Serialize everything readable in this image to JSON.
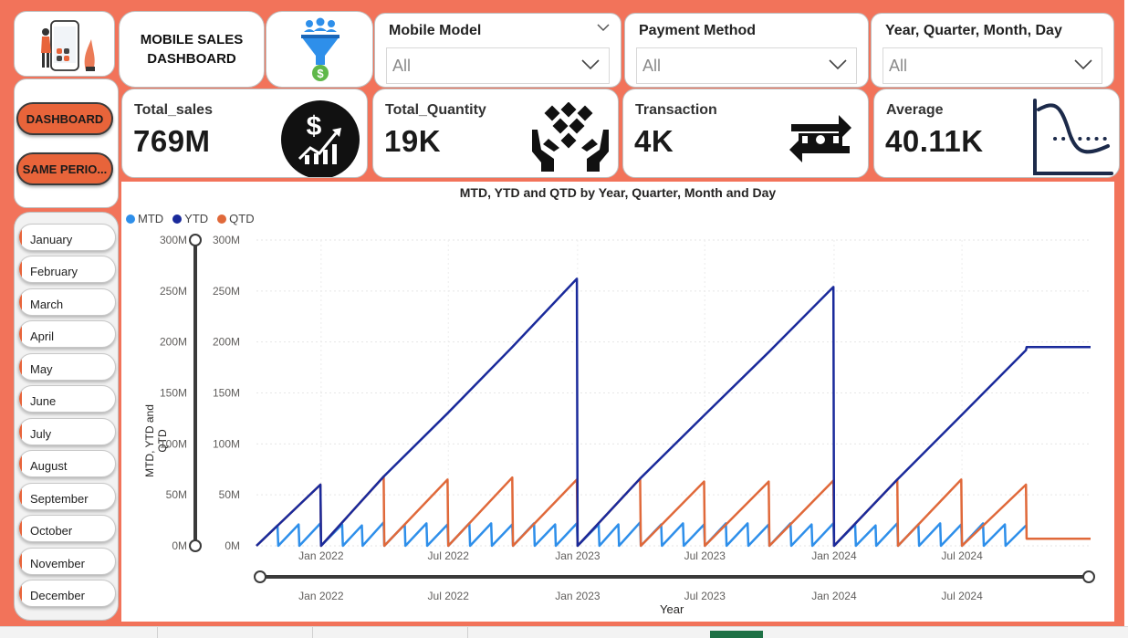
{
  "header": {
    "title": "MOBILE SALES\nDASHBOARD"
  },
  "slicers": [
    {
      "label": "Mobile Model",
      "value": "All"
    },
    {
      "label": "Payment Method",
      "value": "All"
    },
    {
      "label": "Year, Quarter, Month, Day",
      "value": "All"
    }
  ],
  "nav": {
    "dashboard_label": "DASHBOARD",
    "same_period_label": "SAME PERIO..."
  },
  "months": [
    "January",
    "February",
    "March",
    "April",
    "May",
    "June",
    "July",
    "August",
    "September",
    "October",
    "November",
    "December"
  ],
  "kpis": [
    {
      "label": "Total_sales",
      "value": "769M",
      "icon": "dollar-growth-icon"
    },
    {
      "label": "Total_Quantity",
      "value": "19K",
      "icon": "hands-boxes-icon"
    },
    {
      "label": "Transaction",
      "value": "4K",
      "icon": "money-exchange-icon"
    },
    {
      "label": "Average",
      "value": "40.11K",
      "icon": "distribution-curve-icon"
    }
  ],
  "chart": {
    "title": "MTD, YTD and QTD by Year, Quarter, Month and Day",
    "ylabel": "MTD, YTD and QTD",
    "xlabel": "Year",
    "ytick_labels": [
      "300M",
      "250M",
      "200M",
      "150M",
      "100M",
      "50M",
      "0M"
    ],
    "xtick_labels": [
      "Jan 2022",
      "Jul 2022",
      "Jan 2023",
      "Jul 2023",
      "Jan 2024",
      "Jul 2024"
    ]
  },
  "colors": {
    "background": "#F2735A",
    "accent": "#E8643A",
    "mtd": "#2E8FEA",
    "ytd": "#1A2A9B",
    "qtd": "#E0693A"
  },
  "chart_data": {
    "type": "line",
    "title": "MTD, YTD and QTD by Year, Quarter, Month and Day",
    "xlabel": "Year",
    "ylabel": "MTD, YTD and QTD",
    "ylim": [
      0,
      300000000
    ],
    "xlim": [
      "2021-10-01",
      "2024-12-31"
    ],
    "grid": true,
    "legend": "top-left",
    "series": [
      {
        "name": "MTD",
        "color": "#2E8FEA",
        "x": [
          "2021-10-01",
          "2021-10-31",
          "2021-11-01",
          "2021-11-30",
          "2021-12-01",
          "2021-12-31",
          "2022-01-01",
          "2022-01-31",
          "2022-02-01",
          "2022-02-28",
          "2022-03-01",
          "2022-03-31",
          "2022-04-01",
          "2022-04-30",
          "2022-05-01",
          "2022-05-31",
          "2022-06-01",
          "2022-06-30",
          "2022-07-01",
          "2022-07-31",
          "2022-08-01",
          "2022-08-31",
          "2022-09-01",
          "2022-09-30",
          "2022-10-01",
          "2022-10-31",
          "2022-11-01",
          "2022-11-30",
          "2022-12-01",
          "2022-12-31",
          "2023-01-01",
          "2023-01-31",
          "2023-02-01",
          "2023-02-28",
          "2023-03-01",
          "2023-03-31",
          "2023-04-01",
          "2023-04-30",
          "2023-05-01",
          "2023-05-31",
          "2023-06-01",
          "2023-06-30",
          "2023-07-01",
          "2023-07-31",
          "2023-08-01",
          "2023-08-31",
          "2023-09-01",
          "2023-09-30",
          "2023-10-01",
          "2023-10-31",
          "2023-11-01",
          "2023-11-30",
          "2023-12-01",
          "2023-12-31",
          "2024-01-01",
          "2024-01-31",
          "2024-02-01",
          "2024-02-29",
          "2024-03-01",
          "2024-03-31",
          "2024-04-01",
          "2024-04-30",
          "2024-05-01",
          "2024-05-31",
          "2024-06-01",
          "2024-06-30",
          "2024-07-01",
          "2024-07-31",
          "2024-08-01",
          "2024-08-31",
          "2024-09-01",
          "2024-09-30"
        ],
        "y": [
          0,
          20000000,
          0,
          21000000,
          0,
          22000000,
          0,
          21000000,
          0,
          20000000,
          0,
          23000000,
          0,
          21000000,
          0,
          22000000,
          0,
          21000000,
          0,
          22000000,
          0,
          22000000,
          0,
          21000000,
          0,
          22000000,
          0,
          21000000,
          0,
          22000000,
          0,
          21000000,
          0,
          21000000,
          0,
          23000000,
          0,
          21000000,
          0,
          22000000,
          0,
          21000000,
          0,
          22000000,
          0,
          22000000,
          0,
          21000000,
          0,
          22000000,
          0,
          21000000,
          0,
          22000000,
          0,
          21000000,
          0,
          20000000,
          0,
          22000000,
          0,
          21000000,
          0,
          22000000,
          0,
          21000000,
          0,
          22000000,
          0,
          21000000,
          0,
          20000000
        ]
      },
      {
        "name": "YTD",
        "color": "#1A2A9B",
        "x": [
          "2021-10-01",
          "2021-12-31",
          "2022-01-01",
          "2022-03-31",
          "2022-06-30",
          "2022-09-30",
          "2022-12-31",
          "2023-01-01",
          "2023-03-31",
          "2023-06-30",
          "2023-09-30",
          "2023-12-31",
          "2024-01-01",
          "2024-03-31",
          "2024-06-30",
          "2024-09-30",
          "2024-10-01",
          "2024-12-31"
        ],
        "y": [
          0,
          60000000,
          0,
          68000000,
          130000000,
          195000000,
          262000000,
          0,
          66000000,
          128000000,
          190000000,
          254000000,
          0,
          65000000,
          128000000,
          192000000,
          195000000,
          195000000
        ]
      },
      {
        "name": "QTD",
        "color": "#E0693A",
        "x": [
          "2021-10-01",
          "2021-12-31",
          "2022-01-01",
          "2022-03-31",
          "2022-04-01",
          "2022-06-30",
          "2022-07-01",
          "2022-09-30",
          "2022-10-01",
          "2022-12-31",
          "2023-01-01",
          "2023-03-31",
          "2023-04-01",
          "2023-06-30",
          "2023-07-01",
          "2023-09-30",
          "2023-10-01",
          "2023-12-31",
          "2024-01-01",
          "2024-03-31",
          "2024-04-01",
          "2024-06-30",
          "2024-07-01",
          "2024-09-30",
          "2024-10-01",
          "2024-12-31"
        ],
        "y": [
          0,
          60000000,
          0,
          68000000,
          0,
          65000000,
          0,
          67000000,
          0,
          65000000,
          0,
          66000000,
          0,
          63000000,
          0,
          63000000,
          0,
          64000000,
          0,
          65000000,
          0,
          65000000,
          0,
          60000000,
          7000000,
          7000000
        ]
      }
    ]
  }
}
